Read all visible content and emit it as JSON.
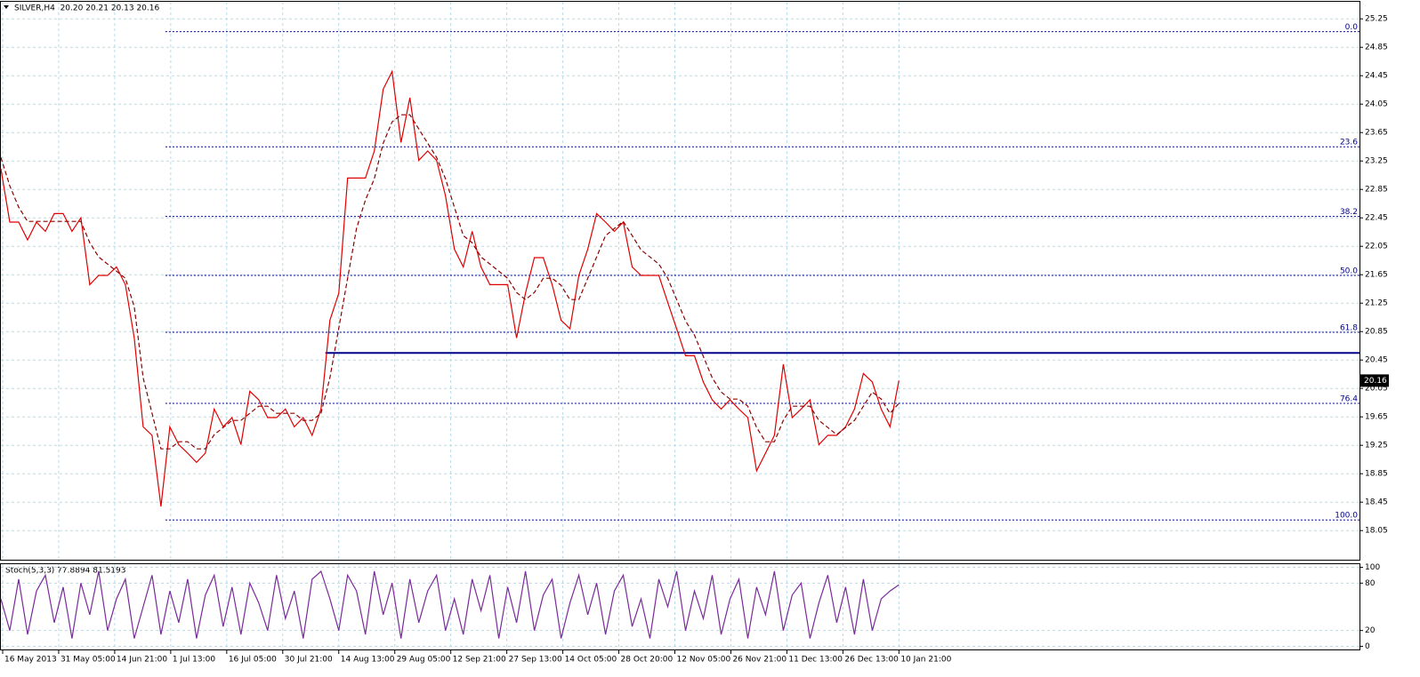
{
  "chart_data": [
    {
      "type": "line",
      "title": "SILVER,H4  20.20 20.21 20.13 20.16",
      "x": [
        0,
        10,
        20,
        30,
        40,
        50,
        60,
        70,
        80,
        90,
        100,
        110,
        120,
        130,
        140,
        150,
        160,
        170,
        180,
        190,
        200,
        210,
        220,
        230,
        240,
        250,
        260,
        270,
        280,
        290,
        300,
        310,
        320,
        330,
        340,
        350,
        360,
        370,
        380,
        390,
        400,
        410,
        420,
        430,
        440,
        450,
        460,
        470,
        480,
        490,
        500,
        510,
        520,
        530,
        540,
        550,
        560,
        570,
        580,
        590,
        600,
        610,
        620,
        630,
        640,
        650,
        660,
        670,
        680,
        690,
        700,
        710,
        720,
        730,
        740,
        750,
        760,
        770,
        780,
        790,
        800,
        810,
        820,
        830,
        840,
        850,
        860,
        870,
        880,
        890,
        900,
        910,
        920,
        930,
        940,
        950,
        960,
        970,
        980,
        990,
        1000,
        1010
      ],
      "series": [
        {
          "color": "#e00000",
          "values": [
            23.14,
            22.39,
            22.39,
            22.14,
            22.39,
            22.26,
            22.51,
            22.51,
            22.26,
            22.45,
            21.51,
            21.64,
            21.64,
            21.76,
            21.51,
            20.76,
            19.51,
            19.39,
            18.39,
            19.51,
            19.26,
            19.14,
            19.01,
            19.14,
            19.76,
            19.51,
            19.64,
            19.26,
            20.01,
            19.89,
            19.64,
            19.64,
            19.76,
            19.51,
            19.64,
            19.39,
            19.76,
            21.01,
            21.39,
            23.01,
            23.01,
            23.01,
            23.39,
            24.26,
            24.51,
            23.51,
            24.14,
            23.26,
            23.39,
            23.26,
            22.76,
            22.01,
            21.76,
            22.26,
            21.76,
            21.51,
            21.51,
            21.51,
            20.76,
            21.39,
            21.89,
            21.89,
            21.51,
            21.01,
            20.89,
            21.64,
            22.01,
            22.51,
            22.39,
            22.26,
            22.39,
            21.76,
            21.64,
            21.64,
            21.64,
            21.26,
            20.89,
            20.51,
            20.51,
            20.14,
            19.89,
            19.76,
            19.89,
            19.76,
            19.64,
            18.89,
            19.14,
            19.39,
            20.39,
            19.64,
            19.76,
            19.89,
            19.26,
            19.39,
            19.39,
            19.51,
            19.76,
            20.26,
            20.14,
            19.76,
            19.51,
            20.16
          ]
        },
        {
          "color": "#8b0000",
          "dashed": true,
          "values": [
            23.3,
            22.9,
            22.6,
            22.4,
            22.4,
            22.4,
            22.4,
            22.4,
            22.4,
            22.4,
            22.1,
            21.9,
            21.8,
            21.7,
            21.6,
            21.2,
            20.2,
            19.7,
            19.2,
            19.2,
            19.3,
            19.3,
            19.2,
            19.2,
            19.4,
            19.5,
            19.6,
            19.6,
            19.7,
            19.8,
            19.8,
            19.7,
            19.7,
            19.7,
            19.6,
            19.6,
            19.7,
            20.2,
            20.9,
            21.6,
            22.3,
            22.7,
            23.0,
            23.5,
            23.8,
            23.9,
            23.9,
            23.7,
            23.5,
            23.3,
            23.0,
            22.6,
            22.2,
            22.1,
            21.9,
            21.8,
            21.7,
            21.6,
            21.4,
            21.3,
            21.4,
            21.6,
            21.6,
            21.5,
            21.3,
            21.3,
            21.6,
            21.9,
            22.2,
            22.3,
            22.4,
            22.2,
            22.0,
            21.9,
            21.8,
            21.6,
            21.3,
            21.0,
            20.8,
            20.5,
            20.2,
            20.0,
            19.9,
            19.9,
            19.8,
            19.5,
            19.3,
            19.3,
            19.6,
            19.8,
            19.8,
            19.8,
            19.6,
            19.5,
            19.4,
            19.5,
            19.6,
            19.8,
            20.0,
            19.9,
            19.7,
            19.84
          ]
        }
      ],
      "xlim": [
        0,
        1528
      ],
      "xticks": [
        {
          "value": 2,
          "label": "16 May 2013"
        },
        {
          "value": 65,
          "label": "31 May 05:00"
        },
        {
          "value": 128,
          "label": "14 Jun 21:00"
        },
        {
          "value": 191,
          "label": "1 Jul 13:00"
        },
        {
          "value": 254,
          "label": "16 Jul 05:00"
        },
        {
          "value": 317,
          "label": "30 Jul 21:00"
        },
        {
          "value": 380,
          "label": "14 Aug 13:00"
        },
        {
          "value": 443,
          "label": "29 Aug 05:00"
        },
        {
          "value": 506,
          "label": "12 Sep 21:00"
        },
        {
          "value": 569,
          "label": "27 Sep 13:00"
        },
        {
          "value": 632,
          "label": "14 Oct 05:00"
        },
        {
          "value": 695,
          "label": "28 Oct 20:00"
        },
        {
          "value": 758,
          "label": "12 Nov 05:00"
        },
        {
          "value": 821,
          "label": "26 Nov 21:00"
        },
        {
          "value": 884,
          "label": "11 Dec 13:00"
        },
        {
          "value": 947,
          "label": "26 Dec 13:00"
        },
        {
          "value": 1010,
          "label": "10 Jan 21:00"
        }
      ],
      "ylim": [
        17.64,
        25.49
      ],
      "yticks": [
        25.25,
        24.85,
        24.45,
        24.05,
        23.65,
        23.25,
        22.85,
        22.45,
        22.05,
        21.65,
        21.25,
        20.85,
        20.45,
        20.05,
        19.65,
        19.25,
        18.85,
        18.45,
        18.05
      ],
      "grid": true,
      "last_price": 20.16,
      "fib_start": 185,
      "fib_levels": [
        {
          "label": "0.0",
          "value": 25.07
        },
        {
          "label": "23.6",
          "value": 23.45
        },
        {
          "label": "38.2",
          "value": 22.47
        },
        {
          "label": "50.0",
          "value": 21.64
        },
        {
          "label": "61.8",
          "value": 20.84
        },
        {
          "label": "76.4",
          "value": 19.84
        },
        {
          "label": "100.0",
          "value": 18.2
        }
      ],
      "hline": {
        "value": 20.55,
        "x_start": 365,
        "color": "#00008b"
      }
    },
    {
      "type": "line",
      "title": "Stoch(5,3,3) 77.8894 81.5193",
      "x": [
        0,
        10,
        20,
        30,
        40,
        50,
        60,
        70,
        80,
        90,
        100,
        110,
        120,
        130,
        140,
        150,
        160,
        170,
        180,
        190,
        200,
        210,
        220,
        230,
        240,
        250,
        260,
        270,
        280,
        290,
        300,
        310,
        320,
        330,
        340,
        350,
        360,
        370,
        380,
        390,
        400,
        410,
        420,
        430,
        440,
        450,
        460,
        470,
        480,
        490,
        500,
        510,
        520,
        530,
        540,
        550,
        560,
        570,
        580,
        590,
        600,
        610,
        620,
        630,
        640,
        650,
        660,
        670,
        680,
        690,
        700,
        710,
        720,
        730,
        740,
        750,
        760,
        770,
        780,
        790,
        800,
        810,
        820,
        830,
        840,
        850,
        860,
        870,
        880,
        890,
        900,
        910,
        920,
        930,
        940,
        950,
        960,
        970,
        980,
        990,
        1000,
        1010
      ],
      "series": [
        {
          "color": "#7a2a9a",
          "values": [
            60,
            20,
            85,
            15,
            70,
            90,
            30,
            75,
            10,
            80,
            40,
            95,
            20,
            60,
            85,
            10,
            50,
            90,
            15,
            70,
            30,
            85,
            10,
            65,
            90,
            25,
            75,
            15,
            80,
            55,
            20,
            90,
            35,
            70,
            10,
            85,
            95,
            60,
            20,
            90,
            70,
            15,
            95,
            40,
            80,
            10,
            85,
            30,
            70,
            90,
            20,
            60,
            15,
            85,
            45,
            90,
            10,
            75,
            30,
            95,
            20,
            65,
            85,
            10,
            55,
            90,
            40,
            80,
            15,
            70,
            90,
            25,
            60,
            10,
            85,
            50,
            95,
            20,
            70,
            35,
            90,
            15,
            60,
            85,
            10,
            75,
            40,
            95,
            20,
            65,
            80,
            10,
            55,
            90,
            30,
            75,
            15,
            85,
            20,
            60,
            70,
            77.89
          ]
        }
      ],
      "xlim": [
        0,
        1528
      ],
      "ylim": [
        -4,
        104
      ],
      "yticks": [
        100,
        80,
        20,
        0
      ],
      "grid": true
    }
  ]
}
